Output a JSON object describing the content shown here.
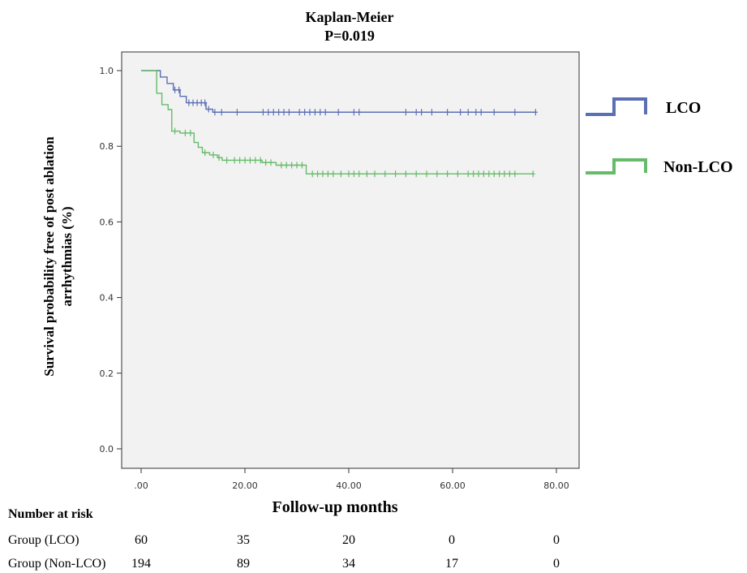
{
  "chart_data": {
    "type": "line",
    "title": "Kaplan-Meier",
    "subtitle": "P=0.019",
    "xlabel": "Follow-up months",
    "ylabel_lines": [
      "Survival probability free of post ablation",
      "arrhythmias (%)"
    ],
    "xlim": [
      0,
      80
    ],
    "ylim": [
      0,
      1.0
    ],
    "x_ticks": [
      0,
      20,
      40,
      60,
      80
    ],
    "x_tick_labels": [
      ".00",
      "20.00",
      "40.00",
      "60.00",
      "80.00"
    ],
    "y_ticks": [
      0,
      0.2,
      0.4,
      0.6,
      0.8,
      1.0
    ],
    "y_tick_labels": [
      "0.0",
      "0.2",
      "0.4",
      "0.6",
      "0.8",
      "1.0"
    ],
    "grid": false,
    "legend_position": "right",
    "series": [
      {
        "name": "LCO",
        "color": "#5b6fb5",
        "steps": [
          [
            0,
            1.0
          ],
          [
            3.7,
            0.983
          ],
          [
            5.0,
            0.966
          ],
          [
            6.2,
            0.949
          ],
          [
            7.5,
            0.932
          ],
          [
            8.7,
            0.915
          ],
          [
            12.5,
            0.898
          ],
          [
            13.8,
            0.89
          ]
        ],
        "end_x": 76,
        "censored": [
          [
            6.5,
            0.949
          ],
          [
            7.3,
            0.949
          ],
          [
            9.2,
            0.915
          ],
          [
            10.0,
            0.915
          ],
          [
            10.8,
            0.915
          ],
          [
            11.6,
            0.915
          ],
          [
            12.3,
            0.915
          ],
          [
            13.0,
            0.898
          ],
          [
            14.2,
            0.89
          ],
          [
            15.5,
            0.89
          ],
          [
            18.5,
            0.89
          ],
          [
            23.5,
            0.89
          ],
          [
            24.5,
            0.89
          ],
          [
            25.5,
            0.89
          ],
          [
            26.5,
            0.89
          ],
          [
            27.5,
            0.89
          ],
          [
            28.5,
            0.89
          ],
          [
            30.5,
            0.89
          ],
          [
            31.5,
            0.89
          ],
          [
            32.5,
            0.89
          ],
          [
            33.5,
            0.89
          ],
          [
            34.5,
            0.89
          ],
          [
            35.5,
            0.89
          ],
          [
            38.0,
            0.89
          ],
          [
            41.0,
            0.89
          ],
          [
            42.0,
            0.89
          ],
          [
            51.0,
            0.89
          ],
          [
            53.0,
            0.89
          ],
          [
            54.0,
            0.89
          ],
          [
            56.0,
            0.89
          ],
          [
            59.0,
            0.89
          ],
          [
            61.5,
            0.89
          ],
          [
            63.0,
            0.89
          ],
          [
            64.5,
            0.89
          ],
          [
            65.5,
            0.89
          ],
          [
            68.0,
            0.89
          ],
          [
            72.0,
            0.89
          ],
          [
            76.0,
            0.89
          ]
        ]
      },
      {
        "name": "Non-LCO",
        "color": "#66bb6a",
        "steps": [
          [
            0,
            1.0
          ],
          [
            3.0,
            0.94
          ],
          [
            4.0,
            0.91
          ],
          [
            5.2,
            0.897
          ],
          [
            5.9,
            0.84
          ],
          [
            7.5,
            0.835
          ],
          [
            10.2,
            0.81
          ],
          [
            11.0,
            0.797
          ],
          [
            11.8,
            0.783
          ],
          [
            13.2,
            0.777
          ],
          [
            14.7,
            0.77
          ],
          [
            15.6,
            0.763
          ],
          [
            23.3,
            0.757
          ],
          [
            26.0,
            0.75
          ],
          [
            31.8,
            0.727
          ]
        ],
        "end_x": 75.5,
        "censored": [
          [
            6.5,
            0.84
          ],
          [
            8.5,
            0.835
          ],
          [
            9.5,
            0.835
          ],
          [
            12.3,
            0.783
          ],
          [
            13.9,
            0.777
          ],
          [
            15.0,
            0.77
          ],
          [
            16.5,
            0.763
          ],
          [
            18.0,
            0.763
          ],
          [
            19.0,
            0.763
          ],
          [
            20.0,
            0.763
          ],
          [
            21.0,
            0.763
          ],
          [
            22.0,
            0.763
          ],
          [
            23.0,
            0.763
          ],
          [
            24.0,
            0.757
          ],
          [
            25.0,
            0.757
          ],
          [
            27.0,
            0.75
          ],
          [
            28.0,
            0.75
          ],
          [
            29.0,
            0.75
          ],
          [
            30.0,
            0.75
          ],
          [
            31.0,
            0.75
          ],
          [
            33.0,
            0.727
          ],
          [
            34.0,
            0.727
          ],
          [
            35.0,
            0.727
          ],
          [
            36.0,
            0.727
          ],
          [
            37.0,
            0.727
          ],
          [
            38.5,
            0.727
          ],
          [
            40.0,
            0.727
          ],
          [
            41.0,
            0.727
          ],
          [
            42.0,
            0.727
          ],
          [
            43.5,
            0.727
          ],
          [
            45.0,
            0.727
          ],
          [
            47.0,
            0.727
          ],
          [
            49.0,
            0.727
          ],
          [
            51.0,
            0.727
          ],
          [
            53.0,
            0.727
          ],
          [
            55.0,
            0.727
          ],
          [
            57.0,
            0.727
          ],
          [
            59.0,
            0.727
          ],
          [
            61.0,
            0.727
          ],
          [
            63.0,
            0.727
          ],
          [
            64.0,
            0.727
          ],
          [
            65.0,
            0.727
          ],
          [
            66.0,
            0.727
          ],
          [
            67.0,
            0.727
          ],
          [
            68.0,
            0.727
          ],
          [
            69.0,
            0.727
          ],
          [
            70.0,
            0.727
          ],
          [
            71.0,
            0.727
          ],
          [
            72.0,
            0.727
          ],
          [
            75.5,
            0.727
          ]
        ]
      }
    ],
    "risk_table": {
      "header": "Number at risk",
      "rows": [
        {
          "label": "Group (LCO)",
          "values": [
            "60",
            "35",
            "20",
            "0",
            "0"
          ]
        },
        {
          "label": "Group (Non-LCO)",
          "values": [
            "194",
            "89",
            "34",
            "17",
            "0"
          ]
        }
      ]
    }
  }
}
